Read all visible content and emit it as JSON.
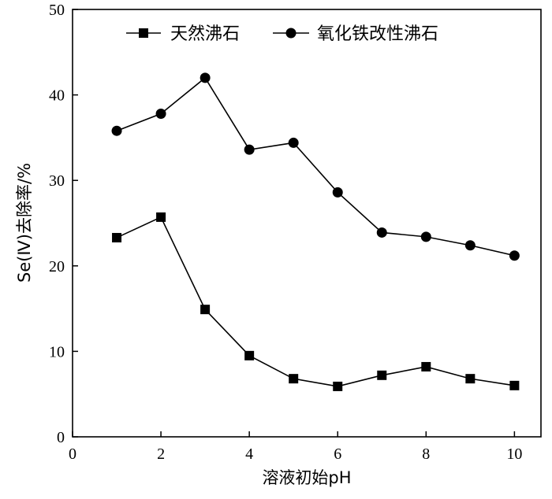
{
  "chart_data": {
    "type": "line",
    "xlabel": "溶液初始pH",
    "ylabel": "Se(Ⅳ)去除率/%",
    "xlim": [
      0,
      10.6
    ],
    "ylim": [
      0,
      50
    ],
    "xticks": [
      0,
      2,
      4,
      6,
      8,
      10
    ],
    "yticks": [
      0,
      10,
      20,
      30,
      40,
      50
    ],
    "grid": false,
    "legend_position": "top",
    "x": [
      1,
      2,
      3,
      4,
      5,
      6,
      7,
      8,
      9,
      10
    ],
    "series": [
      {
        "name": "天然沸石",
        "marker": "square",
        "color": "#000000",
        "values": [
          23.3,
          25.7,
          14.9,
          9.5,
          6.8,
          5.9,
          7.2,
          8.2,
          6.8,
          6.0
        ]
      },
      {
        "name": "氧化铁改性沸石",
        "marker": "circle",
        "color": "#000000",
        "values": [
          35.8,
          37.8,
          42.0,
          33.6,
          34.4,
          28.6,
          23.9,
          23.4,
          22.4,
          21.2
        ]
      }
    ]
  }
}
